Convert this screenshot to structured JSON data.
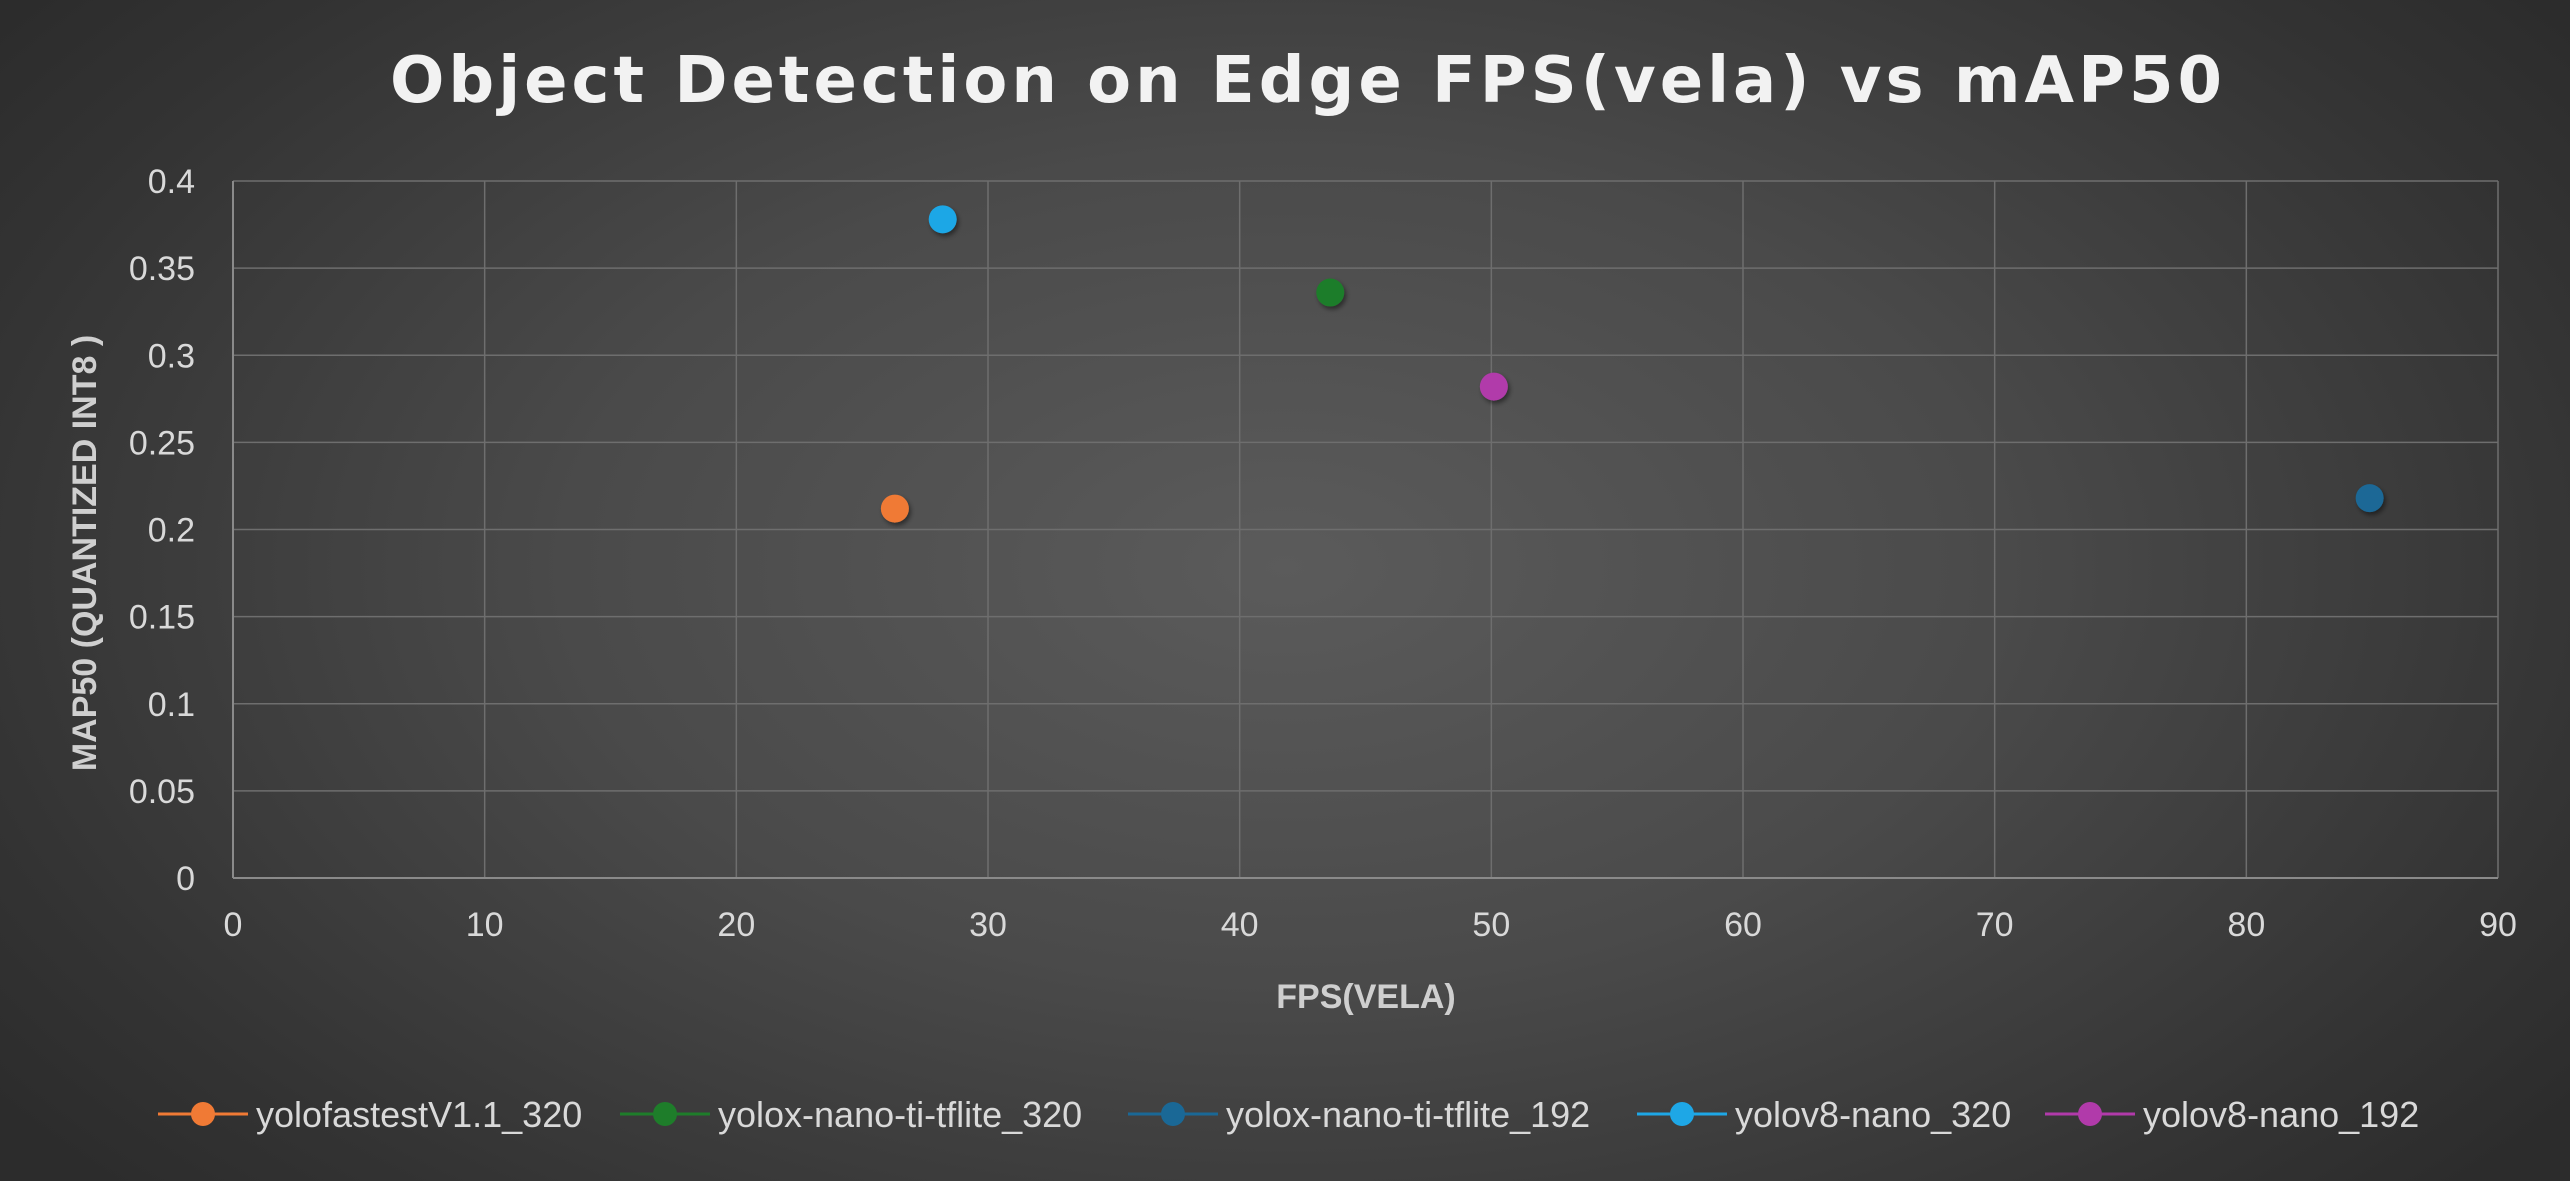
{
  "chart_data": {
    "type": "scatter",
    "title": "Object Detection on Edge FPS(vela) vs mAP50",
    "xlabel": "FPS(VELA)",
    "ylabel": "MAP50 (QUANTIZED INT8 )",
    "xlim": [
      0,
      90
    ],
    "ylim": [
      0,
      0.4
    ],
    "x_ticks": [
      0,
      10,
      20,
      30,
      40,
      50,
      60,
      70,
      80,
      90
    ],
    "y_ticks": [
      0,
      0.05,
      0.1,
      0.15,
      0.2,
      0.25,
      0.3,
      0.35,
      0.4
    ],
    "x_tick_labels": [
      "0",
      "10",
      "20",
      "30",
      "40",
      "50",
      "60",
      "70",
      "80",
      "90"
    ],
    "y_tick_labels": [
      "0",
      "0.05",
      "0.1",
      "0.15",
      "0.2",
      "0.25",
      "0.3",
      "0.35",
      "0.4"
    ],
    "grid": true,
    "legend_position": "bottom",
    "series": [
      {
        "name": "yolofastestV1.1_320",
        "color": "#f07a35",
        "points": [
          {
            "x": 26.3,
            "y": 0.212
          }
        ]
      },
      {
        "name": "yolox-nano-ti-tflite_320",
        "color": "#1e7d2a",
        "points": [
          {
            "x": 43.6,
            "y": 0.336
          }
        ]
      },
      {
        "name": "yolox-nano-ti-tflite_192",
        "color": "#1a6896",
        "points": [
          {
            "x": 84.9,
            "y": 0.218
          }
        ]
      },
      {
        "name": "yolov8-nano_320",
        "color": "#1ea7e6",
        "points": [
          {
            "x": 28.2,
            "y": 0.378
          }
        ]
      },
      {
        "name": "yolov8-nano_192",
        "color": "#b13aaa",
        "points": [
          {
            "x": 50.1,
            "y": 0.282
          }
        ]
      }
    ]
  }
}
